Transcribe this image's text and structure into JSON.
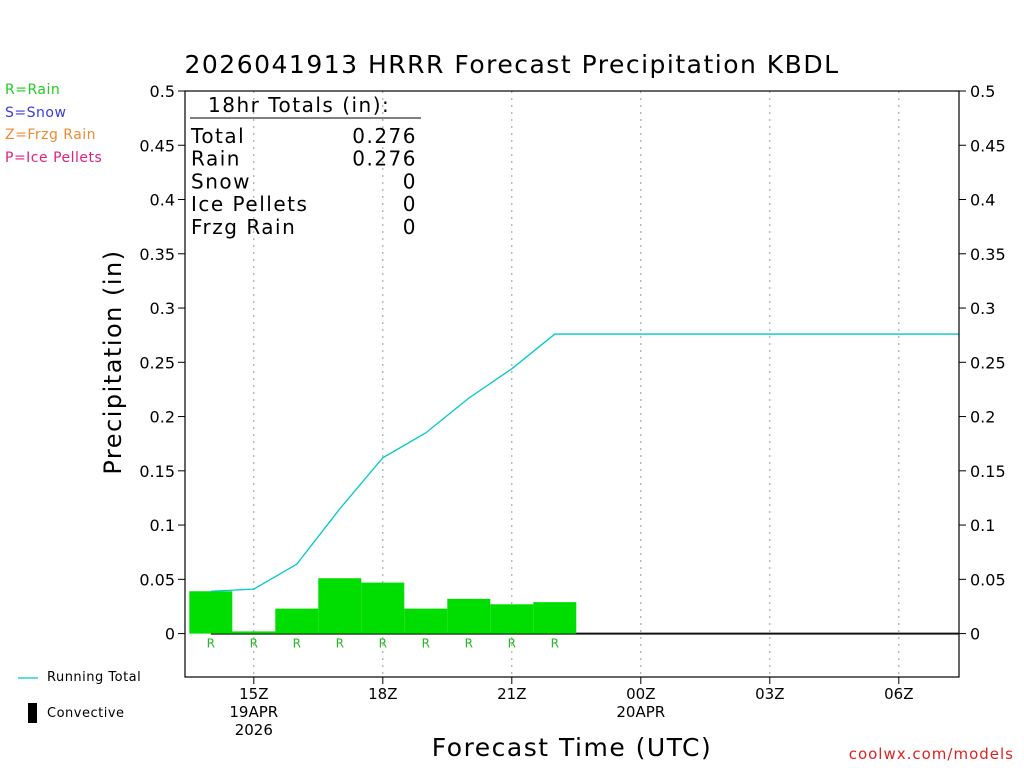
{
  "title": "2026041913 HRRR Forecast Precipitation KBDL",
  "xlabel": "Forecast Time (UTC)",
  "ylabel": "Precipitation (in)",
  "watermark": "coolwx.com/models",
  "type_legend": [
    {
      "label": "R=Rain",
      "color": "#22cc22"
    },
    {
      "label": "S=Snow",
      "color": "#3a3ae0"
    },
    {
      "label": "Z=Frzg Rain",
      "color": "#f08a30"
    },
    {
      "label": "P=Ice Pellets",
      "color": "#e02080"
    }
  ],
  "bottom_legend": {
    "running_total": "Running Total",
    "convective": "Convective"
  },
  "totals": {
    "heading": "18hr Totals (in):",
    "rows": [
      {
        "label": "Total",
        "value": "0.276"
      },
      {
        "label": "Rain",
        "value": "0.276"
      },
      {
        "label": "Snow",
        "value": "0"
      },
      {
        "label": "Ice Pellets",
        "value": "0"
      },
      {
        "label": "Frzg Rain",
        "value": "0"
      }
    ]
  },
  "chart_data": {
    "type": "bar",
    "x_unit": "forecast hour (UTC, 19APR2026 base)",
    "xlim": [
      13.4,
      31.4
    ],
    "ylim": [
      -0.04,
      0.5
    ],
    "yticks": [
      0,
      0.05,
      0.1,
      0.15,
      0.2,
      0.25,
      0.3,
      0.35,
      0.4,
      0.45,
      0.5
    ],
    "ytick_labels": [
      "0",
      "0.05",
      "0.1",
      "0.15",
      "0.2",
      "0.25",
      "0.3",
      "0.35",
      "0.4",
      "0.45",
      "0.5"
    ],
    "xticks": [
      {
        "x": 15,
        "lines": [
          "15Z",
          "19APR",
          "2026"
        ]
      },
      {
        "x": 18,
        "lines": [
          "18Z"
        ]
      },
      {
        "x": 21,
        "lines": [
          "21Z"
        ]
      },
      {
        "x": 24,
        "lines": [
          "00Z",
          "20APR"
        ]
      },
      {
        "x": 27,
        "lines": [
          "03Z"
        ]
      },
      {
        "x": 30,
        "lines": [
          "06Z"
        ]
      }
    ],
    "hourly_precip": {
      "hours": [
        14,
        15,
        16,
        17,
        18,
        19,
        20,
        21,
        22
      ],
      "values": [
        0.039,
        0.002,
        0.023,
        0.051,
        0.047,
        0.023,
        0.032,
        0.027,
        0.029
      ],
      "type_codes": [
        "R",
        "R",
        "R",
        "R",
        "R",
        "R",
        "R",
        "R",
        "R"
      ],
      "color": "#00dd00"
    },
    "running_total": {
      "name": "Running Total",
      "color": "#00c8c8",
      "x": [
        14,
        15,
        16,
        17,
        18,
        19,
        20,
        21,
        22,
        31.4
      ],
      "y": [
        0.039,
        0.041,
        0.064,
        0.115,
        0.162,
        0.185,
        0.217,
        0.244,
        0.276,
        0.276
      ]
    },
    "zero_line_end": 31.4,
    "grid": "vertical dotted"
  }
}
